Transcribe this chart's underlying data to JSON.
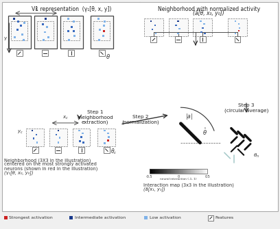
{
  "bg_color": "#f0f0f0",
  "box_bg": "#ffffff",
  "dark_blue": "#1a3a8c",
  "mid_blue": "#3a6abf",
  "light_blue": "#7fb2e8",
  "red": "#cc2222",
  "tl_title": "V1 representation  (γ₁[θ, x, y])",
  "tr_title": "Neighborhood with normalized activity",
  "tr_title2": "(ā[θ, x₀, y₀])",
  "bl_title1": "Neighborhood (3X3 in the illustration)",
  "bl_title2": "centered on the most strongly activated",
  "bl_title3": "neurons (shown in red in the illustration)",
  "bl_title4": "(γ₁[θ, x₀, y₀])",
  "br_title1": "Interaction map (3x3 in the illustration)",
  "br_title2": "(ā[x₁, y₁])",
  "legend_red": "Strongest activation",
  "legend_dark_blue": "Intermediate activation",
  "legend_light_blue": "Low activation",
  "legend_features": "Features"
}
